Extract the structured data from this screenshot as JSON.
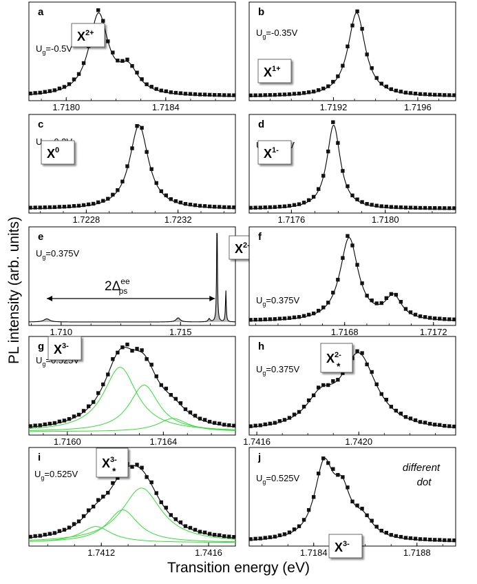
{
  "figure": {
    "ylabel": "PL intensity (arb. units)",
    "xlabel": "Transition energy (eV)"
  },
  "chart_data": [
    {
      "panel": "a",
      "type": "line",
      "state_main": "X",
      "state_sup": "2+",
      "state_sub": "",
      "gate": "=-0.5V",
      "xlim": [
        1.71785,
        1.71868
      ],
      "ticks": [
        1.718,
        1.7184
      ],
      "tick_labels": [
        "1.7180",
        "1.7184"
      ],
      "peaks": [
        {
          "x0": 1.71813,
          "w": 9.5e-05,
          "a": 1.0
        },
        {
          "x0": 1.71825,
          "w": 0.0001,
          "a": 0.3
        }
      ]
    },
    {
      "panel": "b",
      "type": "line",
      "state_main": "X",
      "state_sup": "1+",
      "state_sub": "",
      "gate": "=-0.35V",
      "xlim": [
        1.7188,
        1.71978
      ],
      "ticks": [
        1.7192,
        1.7196
      ],
      "tick_labels": [
        "1.7192",
        "1.7196"
      ],
      "peaks": [
        {
          "x0": 1.71931,
          "w": 0.0001,
          "a": 1.0
        }
      ]
    },
    {
      "panel": "c",
      "type": "line",
      "state_main": "X",
      "state_sup": "0",
      "state_sub": "",
      "gate": "=-0.2V",
      "xlim": [
        1.72255,
        1.72345
      ],
      "ticks": [
        1.7228,
        1.7232
      ],
      "tick_labels": [
        "1.7228",
        "1.7232"
      ],
      "peaks": [
        {
          "x0": 1.72303,
          "w": 0.0001,
          "a": 1.0
        }
      ]
    },
    {
      "panel": "d",
      "type": "line",
      "state_main": "X",
      "state_sup": "1-",
      "state_sub": "",
      "gate": "=0.25V",
      "xlim": [
        1.71742,
        1.7183
      ],
      "ticks": [
        1.7176,
        1.718
      ],
      "tick_labels": [
        "1.7176",
        "1.7180"
      ],
      "peaks": [
        {
          "x0": 1.71778,
          "w": 7e-05,
          "a": 1.0
        }
      ]
    },
    {
      "panel": "e",
      "type": "line",
      "state_main": "X",
      "state_sup": "2-",
      "state_sub": "",
      "gate": "=0.375V",
      "annotation": "2Δ",
      "annotation_sup": "ee",
      "annotation_sub": "ps",
      "xlim": [
        1.70865,
        1.7173
      ],
      "ticks": [
        1.71,
        1.715
      ],
      "tick_labels": [
        "1.710",
        "1.715"
      ],
      "peaks": [
        {
          "x0": 1.71653,
          "w": 4e-05,
          "a": 1.0
        },
        {
          "x0": 1.7169,
          "w": 4e-05,
          "a": 0.3
        },
        {
          "x0": 1.7094,
          "w": 0.0003,
          "a": 0.03
        },
        {
          "x0": 1.7149,
          "w": 0.0002,
          "a": 0.04
        },
        {
          "x0": 1.7162,
          "w": 0.0001,
          "a": 0.03
        }
      ]
    },
    {
      "panel": "f",
      "type": "line",
      "state_main": "",
      "state_sup": "",
      "state_sub": "",
      "gate": "=0.375V",
      "xlim": [
        1.71637,
        1.7173
      ],
      "ticks": [
        1.7168,
        1.7172
      ],
      "tick_labels": [
        "1.7168",
        "1.7172"
      ],
      "peaks": [
        {
          "x0": 1.71682,
          "w": 0.0001,
          "a": 1.0
        },
        {
          "x0": 1.71702,
          "w": 9e-05,
          "a": 0.28
        }
      ]
    },
    {
      "panel": "g",
      "type": "line",
      "state_main": "X",
      "state_sup": "3-",
      "state_sub": "",
      "gate": "=0.525V",
      "xlim": [
        1.71584,
        1.7167
      ],
      "ticks": [
        1.716,
        1.7164
      ],
      "tick_labels": [
        "1.7160",
        "1.7164"
      ],
      "peaks": [
        {
          "x0": 1.71622,
          "w": 0.00017,
          "a": 0.83
        },
        {
          "x0": 1.71632,
          "w": 0.00015,
          "a": 0.6
        },
        {
          "x0": 1.71644,
          "w": 0.00015,
          "a": 0.17
        }
      ]
    },
    {
      "panel": "h",
      "type": "line",
      "state_main": "X",
      "state_sup": "2-",
      "state_sub": "*",
      "gate": "=0.375V",
      "xlim": [
        1.74157,
        1.74238
      ],
      "ticks": [
        1.7416,
        1.742
      ],
      "tick_labels": [
        "1.7416",
        "1.7420"
      ],
      "peaks": [
        {
          "x0": 1.742,
          "w": 0.00017,
          "a": 1.0
        },
        {
          "x0": 1.74185,
          "w": 0.00014,
          "a": 0.35
        }
      ]
    },
    {
      "panel": "i",
      "type": "line",
      "state_main": "X",
      "state_sup": "3-",
      "state_sub": "*",
      "gate": "=0.525V",
      "xlim": [
        1.74093,
        1.7417
      ],
      "ticks": [
        1.7412,
        1.7416
      ],
      "tick_labels": [
        "1.7412",
        "1.7416"
      ],
      "peaks": [
        {
          "x0": 1.74118,
          "w": 0.00014,
          "a": 0.28
        },
        {
          "x0": 1.74128,
          "w": 0.00014,
          "a": 0.57
        },
        {
          "x0": 1.74135,
          "w": 0.00018,
          "a": 0.95
        }
      ]
    },
    {
      "panel": "j",
      "type": "line",
      "state_main": "X",
      "state_sup": "3-",
      "state_sub": "",
      "gate": "=0.525V",
      "note": "different dot",
      "xlim": [
        1.71815,
        1.71895
      ],
      "ticks": [
        1.7184,
        1.7188
      ],
      "tick_labels": [
        "1.7184",
        "1.7188"
      ],
      "peaks": [
        {
          "x0": 1.71844,
          "w": 9e-05,
          "a": 1.0
        },
        {
          "x0": 1.71851,
          "w": 8e-05,
          "a": 0.55
        },
        {
          "x0": 1.71859,
          "w": 0.0001,
          "a": 0.25
        }
      ]
    }
  ]
}
